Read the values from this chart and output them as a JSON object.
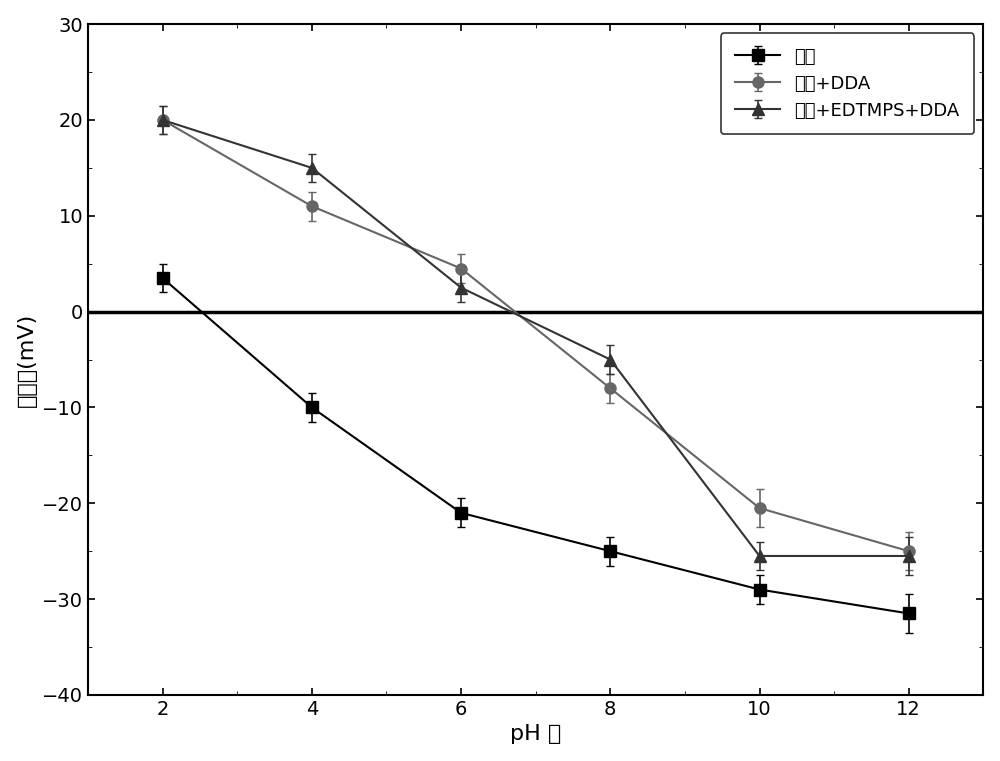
{
  "x": [
    2,
    4,
    6,
    8,
    10,
    12
  ],
  "series1_y": [
    3.5,
    -10,
    -21,
    -25,
    -29,
    -31.5
  ],
  "series1_yerr": [
    1.5,
    1.5,
    1.5,
    1.5,
    1.5,
    2.0
  ],
  "series1_label": "石英",
  "series1_marker": "s",
  "series1_color": "#000000",
  "series2_y": [
    20,
    11,
    4.5,
    -8,
    -20.5,
    -25
  ],
  "series2_yerr": [
    1.5,
    1.5,
    1.5,
    1.5,
    2.0,
    2.0
  ],
  "series2_label": "石英+DDA",
  "series2_marker": "o",
  "series2_color": "#666666",
  "series3_y": [
    20,
    15,
    2.5,
    -5,
    -25.5,
    -25.5
  ],
  "series3_yerr": [
    1.5,
    1.5,
    1.5,
    1.5,
    1.5,
    2.0
  ],
  "series3_label": "石英+EDTMPS+DDA",
  "series3_marker": "^",
  "series3_color": "#333333",
  "xlabel": "pH 値",
  "ylabel": "动电位（mV）",
  "ylabel_display": "动电位(mV)",
  "xlim": [
    1,
    13
  ],
  "ylim": [
    -40,
    30
  ],
  "yticks": [
    -40,
    -30,
    -20,
    -10,
    0,
    10,
    20,
    30
  ],
  "xticks": [
    2,
    4,
    6,
    8,
    10,
    12
  ],
  "hline_y": 0,
  "line_width": 1.5,
  "marker_size": 8
}
